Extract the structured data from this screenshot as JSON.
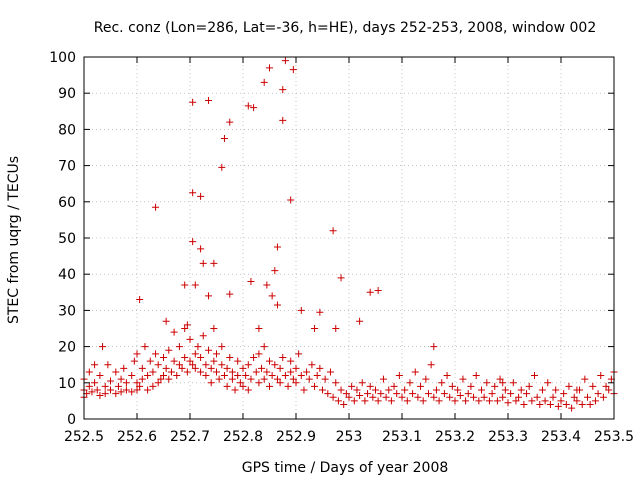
{
  "chart_data": {
    "type": "scatter",
    "title": "Rec. conz (Lon=286, Lat=-36, h=HE), days 252-253, 2008, window 002",
    "xlabel": "GPS time / Days of year 2008",
    "ylabel": "STEC from uqrg / TECUs",
    "xlim": [
      252.5,
      253.5
    ],
    "ylim": [
      0,
      100
    ],
    "x_ticks": [
      252.5,
      252.6,
      252.7,
      252.8,
      252.9,
      253.0,
      253.1,
      253.2,
      253.3,
      253.4,
      253.5
    ],
    "x_tick_labels": [
      "252.5",
      "252.6",
      "252.7",
      "252.8",
      "252.9",
      "253",
      "253.1",
      "253.2",
      "253.3",
      "253.4",
      "253.5"
    ],
    "y_ticks": [
      0,
      10,
      20,
      30,
      40,
      50,
      60,
      70,
      80,
      90,
      100
    ],
    "y_tick_labels": [
      "0",
      "10",
      "20",
      "30",
      "40",
      "50",
      "60",
      "70",
      "80",
      "90",
      "100"
    ],
    "grid": true,
    "marker": "plus",
    "color": "#cc0000",
    "series": [
      {
        "name": "STEC",
        "points": [
          [
            252.5,
            6
          ],
          [
            252.5,
            8
          ],
          [
            252.5,
            11
          ],
          [
            252.505,
            7
          ],
          [
            252.51,
            9
          ],
          [
            252.51,
            13
          ],
          [
            252.515,
            7.5
          ],
          [
            252.52,
            10
          ],
          [
            252.52,
            15
          ],
          [
            252.525,
            8
          ],
          [
            252.53,
            6.5
          ],
          [
            252.53,
            12
          ],
          [
            252.535,
            20
          ],
          [
            252.54,
            7
          ],
          [
            252.54,
            9
          ],
          [
            252.545,
            15
          ],
          [
            252.55,
            8
          ],
          [
            252.55,
            10.5
          ],
          [
            252.56,
            7
          ],
          [
            252.56,
            13
          ],
          [
            252.565,
            9
          ],
          [
            252.57,
            7.5
          ],
          [
            252.57,
            11
          ],
          [
            252.575,
            14
          ],
          [
            252.58,
            8
          ],
          [
            252.58,
            10
          ],
          [
            252.59,
            7.5
          ],
          [
            252.59,
            12
          ],
          [
            252.595,
            16
          ],
          [
            252.6,
            8
          ],
          [
            252.6,
            10
          ],
          [
            252.6,
            18
          ],
          [
            252.605,
            9
          ],
          [
            252.61,
            11
          ],
          [
            252.61,
            14
          ],
          [
            252.615,
            20
          ],
          [
            252.62,
            8
          ],
          [
            252.62,
            12
          ],
          [
            252.625,
            16
          ],
          [
            252.63,
            9
          ],
          [
            252.63,
            13
          ],
          [
            252.635,
            18
          ],
          [
            252.64,
            10
          ],
          [
            252.64,
            15
          ],
          [
            252.645,
            11
          ],
          [
            252.65,
            12
          ],
          [
            252.65,
            17
          ],
          [
            252.655,
            14
          ],
          [
            252.66,
            11
          ],
          [
            252.66,
            19
          ],
          [
            252.665,
            13
          ],
          [
            252.67,
            16
          ],
          [
            252.67,
            24
          ],
          [
            252.675,
            12
          ],
          [
            252.68,
            15
          ],
          [
            252.68,
            20
          ],
          [
            252.685,
            14
          ],
          [
            252.69,
            17
          ],
          [
            252.69,
            25
          ],
          [
            252.695,
            13
          ],
          [
            252.7,
            16
          ],
          [
            252.7,
            22
          ],
          [
            252.705,
            15
          ],
          [
            252.71,
            18
          ],
          [
            252.71,
            14
          ],
          [
            252.715,
            20
          ],
          [
            252.72,
            13
          ],
          [
            252.72,
            17
          ],
          [
            252.725,
            23
          ],
          [
            252.73,
            15
          ],
          [
            252.73,
            12
          ],
          [
            252.735,
            19
          ],
          [
            252.74,
            14
          ],
          [
            252.74,
            10
          ],
          [
            252.745,
            16
          ],
          [
            252.75,
            13
          ],
          [
            252.75,
            18
          ],
          [
            252.755,
            11
          ],
          [
            252.76,
            15
          ],
          [
            252.76,
            20
          ],
          [
            252.765,
            12
          ],
          [
            252.77,
            14
          ],
          [
            252.77,
            9
          ],
          [
            252.775,
            17
          ],
          [
            252.78,
            11
          ],
          [
            252.78,
            13
          ],
          [
            252.785,
            8
          ],
          [
            252.79,
            12
          ],
          [
            252.79,
            16
          ],
          [
            252.795,
            10
          ],
          [
            252.8,
            14
          ],
          [
            252.8,
            9
          ],
          [
            252.805,
            12
          ],
          [
            252.81,
            15
          ],
          [
            252.81,
            8
          ],
          [
            252.815,
            11
          ],
          [
            252.82,
            17
          ],
          [
            252.825,
            13
          ],
          [
            252.83,
            10
          ],
          [
            252.83,
            18
          ],
          [
            252.835,
            14
          ],
          [
            252.84,
            11
          ],
          [
            252.84,
            20
          ],
          [
            252.845,
            13
          ],
          [
            252.85,
            16
          ],
          [
            252.85,
            9
          ],
          [
            252.855,
            12
          ],
          [
            252.86,
            15
          ],
          [
            252.865,
            11
          ],
          [
            252.87,
            14
          ],
          [
            252.87,
            10
          ],
          [
            252.875,
            17
          ],
          [
            252.88,
            12
          ],
          [
            252.885,
            9
          ],
          [
            252.89,
            13
          ],
          [
            252.89,
            16
          ],
          [
            252.895,
            11
          ],
          [
            252.9,
            14
          ],
          [
            252.9,
            10
          ],
          [
            252.905,
            18
          ],
          [
            252.91,
            12
          ],
          [
            252.915,
            8
          ],
          [
            252.92,
            13
          ],
          [
            252.925,
            11
          ],
          [
            252.93,
            15
          ],
          [
            252.935,
            9
          ],
          [
            252.94,
            12
          ],
          [
            252.945,
            14
          ],
          [
            252.95,
            8
          ],
          [
            252.955,
            11
          ],
          [
            252.96,
            7
          ],
          [
            252.965,
            13
          ],
          [
            252.97,
            6
          ],
          [
            252.975,
            10
          ],
          [
            252.98,
            5
          ],
          [
            252.985,
            8
          ],
          [
            252.99,
            4
          ],
          [
            252.995,
            7
          ],
          [
            253.0,
            6
          ],
          [
            253.005,
            9
          ],
          [
            253.01,
            5
          ],
          [
            253.015,
            8
          ],
          [
            253.02,
            6.5
          ],
          [
            253.025,
            10
          ],
          [
            253.03,
            5
          ],
          [
            253.035,
            7
          ],
          [
            253.04,
            9
          ],
          [
            253.045,
            6
          ],
          [
            253.05,
            8
          ],
          [
            253.055,
            5
          ],
          [
            253.06,
            7
          ],
          [
            253.065,
            11
          ],
          [
            253.07,
            6
          ],
          [
            253.075,
            8
          ],
          [
            253.08,
            5
          ],
          [
            253.085,
            9
          ],
          [
            253.09,
            7
          ],
          [
            253.095,
            12
          ],
          [
            253.1,
            6
          ],
          [
            253.105,
            8
          ],
          [
            253.11,
            5
          ],
          [
            253.115,
            10
          ],
          [
            253.12,
            7
          ],
          [
            253.125,
            13
          ],
          [
            253.13,
            6
          ],
          [
            253.135,
            9
          ],
          [
            253.14,
            5
          ],
          [
            253.145,
            11
          ],
          [
            253.15,
            7
          ],
          [
            253.155,
            15
          ],
          [
            253.16,
            6
          ],
          [
            253.165,
            8
          ],
          [
            253.17,
            5
          ],
          [
            253.175,
            10
          ],
          [
            253.18,
            7
          ],
          [
            253.185,
            12
          ],
          [
            253.19,
            6
          ],
          [
            253.195,
            9
          ],
          [
            253.2,
            5
          ],
          [
            253.205,
            8
          ],
          [
            253.21,
            6.5
          ],
          [
            253.215,
            11
          ],
          [
            253.22,
            5
          ],
          [
            253.225,
            7
          ],
          [
            253.23,
            9
          ],
          [
            253.235,
            6
          ],
          [
            253.24,
            12
          ],
          [
            253.245,
            5
          ],
          [
            253.25,
            8
          ],
          [
            253.255,
            6
          ],
          [
            253.26,
            10
          ],
          [
            253.265,
            5
          ],
          [
            253.27,
            7
          ],
          [
            253.275,
            9
          ],
          [
            253.28,
            5
          ],
          [
            253.285,
            11
          ],
          [
            253.29,
            6
          ],
          [
            253.295,
            8
          ],
          [
            253.3,
            4.5
          ],
          [
            253.305,
            7
          ],
          [
            253.31,
            10
          ],
          [
            253.315,
            5
          ],
          [
            253.32,
            6
          ],
          [
            253.325,
            8
          ],
          [
            253.33,
            4
          ],
          [
            253.335,
            7
          ],
          [
            253.34,
            9
          ],
          [
            253.345,
            5
          ],
          [
            253.35,
            12
          ],
          [
            253.355,
            6
          ],
          [
            253.36,
            4
          ],
          [
            253.365,
            8
          ],
          [
            253.37,
            5
          ],
          [
            253.375,
            10
          ],
          [
            253.38,
            4
          ],
          [
            253.385,
            6
          ],
          [
            253.39,
            8
          ],
          [
            253.395,
            3.5
          ],
          [
            253.4,
            5
          ],
          [
            253.405,
            7
          ],
          [
            253.41,
            4
          ],
          [
            253.415,
            9
          ],
          [
            253.42,
            3
          ],
          [
            253.425,
            6
          ],
          [
            253.43,
            5
          ],
          [
            253.435,
            8
          ],
          [
            253.44,
            4
          ],
          [
            253.445,
            11
          ],
          [
            253.45,
            6
          ],
          [
            253.455,
            4
          ],
          [
            253.46,
            9
          ],
          [
            253.465,
            5
          ],
          [
            253.47,
            7
          ],
          [
            253.475,
            12
          ],
          [
            253.48,
            6
          ],
          [
            253.485,
            9
          ],
          [
            253.49,
            8
          ],
          [
            253.495,
            11
          ],
          [
            253.5,
            7
          ],
          [
            253.5,
            13
          ],
          [
            252.605,
            33
          ],
          [
            252.635,
            58.5
          ],
          [
            252.655,
            27
          ],
          [
            252.69,
            37
          ],
          [
            252.695,
            26
          ],
          [
            252.705,
            87.5
          ],
          [
            252.705,
            62.5
          ],
          [
            252.705,
            49
          ],
          [
            252.71,
            37
          ],
          [
            252.72,
            61.5
          ],
          [
            252.72,
            47
          ],
          [
            252.725,
            43
          ],
          [
            252.735,
            88
          ],
          [
            252.735,
            34
          ],
          [
            252.745,
            43
          ],
          [
            252.745,
            25
          ],
          [
            252.76,
            69.5
          ],
          [
            252.765,
            77.5
          ],
          [
            252.775,
            82
          ],
          [
            252.775,
            34.5
          ],
          [
            252.81,
            86.5
          ],
          [
            252.815,
            38
          ],
          [
            252.82,
            86
          ],
          [
            252.83,
            25
          ],
          [
            252.84,
            93
          ],
          [
            252.845,
            37
          ],
          [
            252.85,
            97
          ],
          [
            252.855,
            34
          ],
          [
            252.86,
            41
          ],
          [
            252.865,
            47.5
          ],
          [
            252.865,
            31.5
          ],
          [
            252.875,
            91
          ],
          [
            252.875,
            82.5
          ],
          [
            252.88,
            99
          ],
          [
            252.89,
            60.5
          ],
          [
            252.895,
            96.5
          ],
          [
            252.91,
            30
          ],
          [
            252.935,
            25
          ],
          [
            252.945,
            29.5
          ],
          [
            252.97,
            52
          ],
          [
            252.975,
            25
          ],
          [
            252.985,
            39
          ],
          [
            253.02,
            27
          ],
          [
            253.04,
            35
          ],
          [
            253.055,
            35.5
          ],
          [
            253.16,
            20
          ],
          [
            253.29,
            10
          ],
          [
            253.43,
            8
          ]
        ]
      }
    ]
  }
}
